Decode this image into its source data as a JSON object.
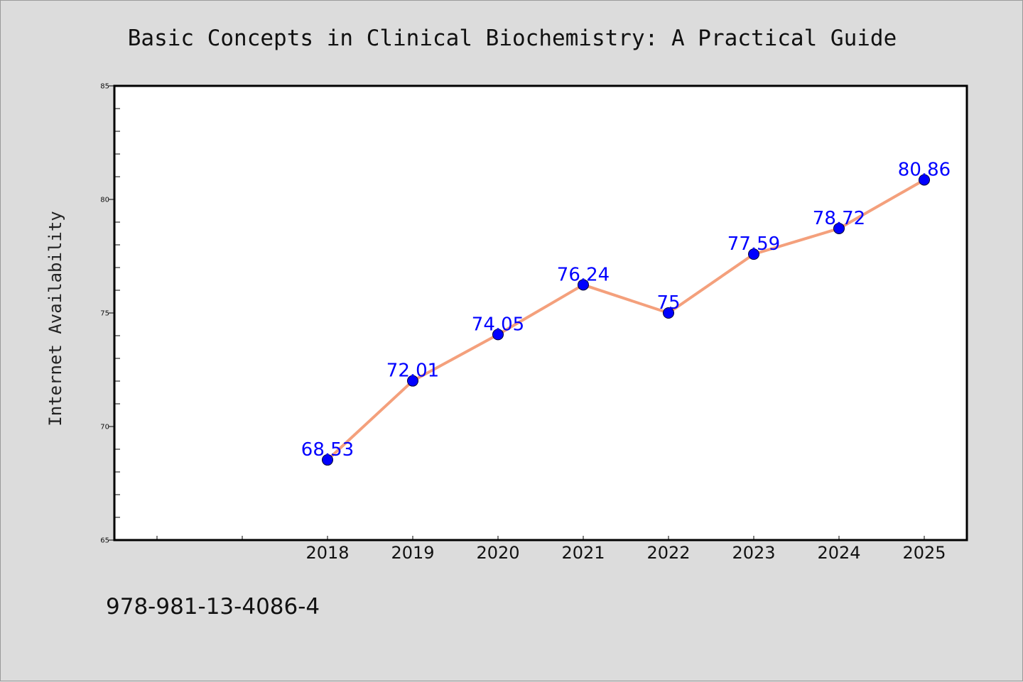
{
  "isbn": "978-981-13-4086-4",
  "colors": {
    "background": "#dcdcdc",
    "plot_background": "#ffffff",
    "line": "#f4a07c",
    "marker": "#0000ff",
    "data_label": "#0000ff"
  },
  "chart_data": {
    "type": "line",
    "title": "Basic Concepts in Clinical Biochemistry: A Practical Guide",
    "xlabel": "",
    "ylabel": "Internet Availability",
    "categories": [
      "2018",
      "2019",
      "2020",
      "2021",
      "2022",
      "2023",
      "2024",
      "2025"
    ],
    "series": [
      {
        "values": [
          68.53,
          72.01,
          74.05,
          76.24,
          75,
          77.59,
          78.72,
          80.86
        ],
        "labels": [
          "68.53",
          "72.01",
          "74.05",
          "76.24",
          "75",
          "77.59",
          "78.72",
          "80.86"
        ]
      }
    ],
    "ylim": [
      65,
      85
    ],
    "yticks": [
      65,
      70,
      75,
      80,
      85
    ],
    "grid": false,
    "legend": "none",
    "markers": "circle",
    "data_labels": true
  }
}
